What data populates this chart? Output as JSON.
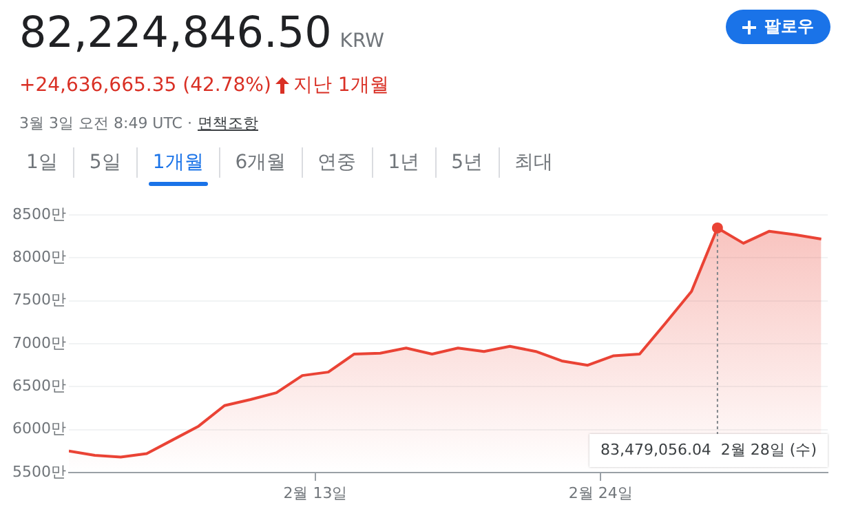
{
  "chart_data": {
    "type": "area",
    "title": "82,224,846.50",
    "annotations": [
      "KRW",
      "+24,636,665.35 (42.78%)",
      "지난 1개월",
      "3월 3일 오전 8:49 UTC ·",
      "면책조항",
      "1일",
      "5일",
      "1개월",
      "6개월",
      "연중",
      "1년",
      "5년",
      "최대",
      "팔로우",
      {
        "text": "83,479,056.04  2월 28일 (수)",
        "x": "--02-28T12:00",
        "y": 8348
      }
    ],
    "x": [
      "--02-03T12:00",
      "--02-04T12:00",
      "--02-05T12:00",
      "--02-06T12:00",
      "--02-07T12:00",
      "--02-08T12:00",
      "--02-09T12:00",
      "--02-10T12:00",
      "--02-11T12:00",
      "--02-12T12:00",
      "--02-13T12:00",
      "--02-14T12:00",
      "--02-15T12:00",
      "--02-16T12:00",
      "--02-17T12:00",
      "--02-18T12:00",
      "--02-19T12:00",
      "--02-20T12:00",
      "--02-21T12:00",
      "--02-22T12:00",
      "--02-23T12:00",
      "--02-24T12:00",
      "--02-25T12:00",
      "--02-26T12:00",
      "--02-27T12:00",
      "--02-28T12:00",
      "--02-29T12:00",
      "--03-01T12:00",
      "--03-02T12:00",
      "--03-03T12:00"
    ],
    "series": [
      {
        "color": "#ea4335",
        "values": [
          5750,
          5700,
          5680,
          5720,
          5880,
          6040,
          6280,
          6350,
          6430,
          6630,
          6670,
          6880,
          6890,
          6950,
          6880,
          6950,
          6910,
          6970,
          6910,
          6800,
          6750,
          6860,
          6880,
          7240,
          7610,
          8348,
          8170,
          8310,
          8270,
          8220
        ]
      }
    ],
    "xlim": [
      "--02-03T12:00",
      "--03-03T18:00"
    ],
    "xticks": [
      {
        "value": "--02-13",
        "label": "2월 13일"
      },
      {
        "value": "--02-24",
        "label": "2월 24일"
      }
    ],
    "ylim": [
      5500,
      8500
    ],
    "yticks": [
      {
        "value": 5500,
        "label": "5500만"
      },
      {
        "value": 6000,
        "label": "6000만"
      },
      {
        "value": 6500,
        "label": "6500만"
      },
      {
        "value": 7000,
        "label": "7000만"
      },
      {
        "value": 7500,
        "label": "7500만"
      },
      {
        "value": 8000,
        "label": "8000만"
      },
      {
        "value": 8500,
        "label": "8500만"
      }
    ],
    "grid": "y",
    "legend": false,
    "marker": "none",
    "line_style": "solid"
  }
}
